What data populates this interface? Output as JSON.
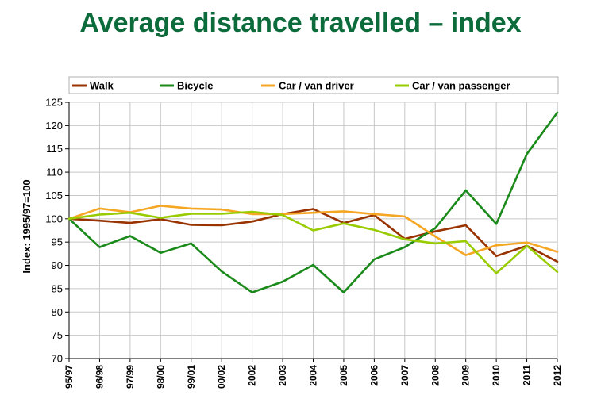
{
  "title": "Average distance travelled – index",
  "chart_data": {
    "type": "line",
    "title": "Average distance travelled – index",
    "xlabel": "",
    "ylabel": "Index: 1995/97=100",
    "ylim": [
      70,
      125
    ],
    "yticks": [
      70,
      75,
      80,
      85,
      90,
      95,
      100,
      105,
      110,
      115,
      120,
      125
    ],
    "grid": true,
    "legend_position": "top",
    "categories": [
      "95/97",
      "96/98",
      "97/99",
      "98/00",
      "99/01",
      "00/02",
      "2002",
      "2003",
      "2004",
      "2005",
      "2006",
      "2007",
      "2008",
      "2009",
      "2010",
      "2011",
      "2012"
    ],
    "series": [
      {
        "name": "Walk",
        "color": "#993300",
        "values": [
          100,
          99.6,
          99.1,
          99.9,
          98.7,
          98.6,
          99.4,
          101.0,
          102.1,
          99.1,
          100.8,
          95.7,
          97.3,
          98.6,
          92.0,
          94.2,
          90.8
        ]
      },
      {
        "name": "Bicycle",
        "color": "#1a8a1a",
        "values": [
          100,
          93.9,
          96.3,
          92.7,
          94.7,
          88.7,
          84.2,
          86.5,
          90.1,
          84.2,
          91.3,
          93.9,
          98.0,
          106.1,
          98.9,
          113.9,
          122.8
        ]
      },
      {
        "name": "Car / van driver",
        "color": "#f5a623",
        "values": [
          100,
          102.2,
          101.4,
          102.8,
          102.2,
          102.0,
          101.0,
          101.0,
          101.3,
          101.6,
          101.0,
          100.5,
          96.2,
          92.2,
          94.3,
          94.9,
          92.9
        ]
      },
      {
        "name": "Car / van passenger",
        "color": "#99cc00",
        "values": [
          100,
          100.9,
          101.3,
          100.2,
          101.1,
          101.1,
          101.5,
          100.8,
          97.5,
          99.0,
          97.6,
          95.6,
          94.7,
          95.2,
          88.3,
          94.2,
          88.6
        ]
      }
    ]
  }
}
